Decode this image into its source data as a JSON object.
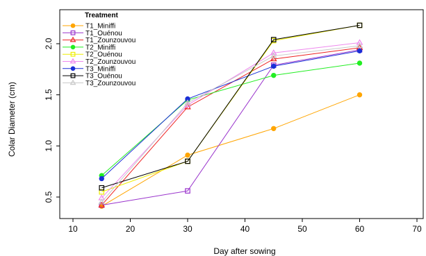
{
  "chart_data": {
    "type": "line",
    "xlabel": "Day after sowing",
    "ylabel": "Colar Diameter (cm)",
    "xlim": [
      10,
      70
    ],
    "ylim": [
      0.5,
      2.0
    ],
    "xticks": [
      "10",
      "20",
      "30",
      "40",
      "50",
      "60",
      "70"
    ],
    "yticks": [
      "0.5",
      "1.0",
      "1.5",
      "2.0"
    ],
    "x": [
      15,
      30,
      45,
      60
    ],
    "legend_title": "Treatment",
    "legend_position": "top-left",
    "grid": false,
    "series": [
      {
        "name": "T1_Miniffi",
        "values": [
          0.41,
          0.91,
          1.17,
          1.5
        ],
        "color": "#ffa500",
        "marker": "dot"
      },
      {
        "name": "T1_Ouénou",
        "values": [
          0.42,
          0.56,
          1.79,
          1.94
        ],
        "color": "#9933cc",
        "marker": "square-open"
      },
      {
        "name": "T1_Zounzouvou",
        "values": [
          0.42,
          1.38,
          1.85,
          1.96
        ],
        "color": "#ee2222",
        "marker": "triangle-open"
      },
      {
        "name": "T2_Miniffi",
        "values": [
          0.71,
          1.45,
          1.69,
          1.81
        ],
        "color": "#22ee22",
        "marker": "dot"
      },
      {
        "name": "T2_Ouénou",
        "values": [
          0.55,
          0.85,
          2.03,
          2.18
        ],
        "color": "#eeee00",
        "marker": "square-open"
      },
      {
        "name": "T2_Zounzouvou",
        "values": [
          0.49,
          1.4,
          1.91,
          2.01
        ],
        "color": "#ee88ee",
        "marker": "triangle-open"
      },
      {
        "name": "T3_Miniffi",
        "values": [
          0.68,
          1.46,
          1.78,
          1.93
        ],
        "color": "#1a2fd6",
        "marker": "dot"
      },
      {
        "name": "T3_Ouénou",
        "values": [
          0.59,
          0.85,
          2.04,
          2.18
        ],
        "color": "#000000",
        "marker": "square-open"
      },
      {
        "name": "T3_Zounzouvou",
        "values": [
          0.45,
          1.42,
          1.88,
          1.98
        ],
        "color": "#c8c8c8",
        "marker": "triangle-open"
      }
    ]
  }
}
